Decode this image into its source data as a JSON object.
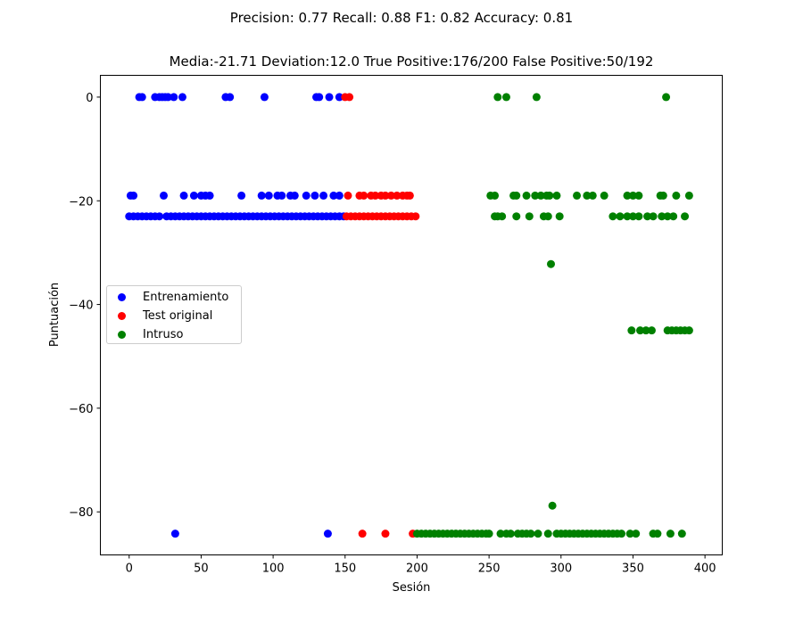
{
  "chart_data": {
    "type": "scatter",
    "suptitle": "Precision: 0.77 Recall: 0.88 F1: 0.82 Accuracy: 0.81",
    "title": "Media:-21.71 Deviation:12.0 True Positive:176/200 False Positive:50/192",
    "xlabel": "Sesión",
    "ylabel": "Puntuación",
    "xlim": [
      -20,
      412
    ],
    "ylim": [
      -88.3,
      4.2
    ],
    "xticks": [
      0,
      50,
      100,
      150,
      200,
      250,
      300,
      350,
      400
    ],
    "yticks": [
      0,
      -20,
      -40,
      -60,
      -80
    ],
    "ytick_labels": [
      "0",
      "−20",
      "−40",
      "−60",
      "−80"
    ],
    "grid": false,
    "legend_position": "center-left",
    "series": [
      {
        "name": "Entrenamiento",
        "color": "#0000ff",
        "points": [
          [
            7,
            0
          ],
          [
            9,
            0
          ],
          [
            18,
            0
          ],
          [
            21,
            0
          ],
          [
            23,
            0
          ],
          [
            25,
            0
          ],
          [
            27,
            0
          ],
          [
            31,
            0
          ],
          [
            37,
            0
          ],
          [
            67,
            0
          ],
          [
            70,
            0
          ],
          [
            94,
            0
          ],
          [
            130,
            0
          ],
          [
            132,
            0
          ],
          [
            139,
            0
          ],
          [
            146,
            0
          ],
          [
            1,
            -19
          ],
          [
            3,
            -19
          ],
          [
            24,
            -19
          ],
          [
            38,
            -19
          ],
          [
            45,
            -19
          ],
          [
            50,
            -19
          ],
          [
            53,
            -19
          ],
          [
            56,
            -19
          ],
          [
            78,
            -19
          ],
          [
            92,
            -19
          ],
          [
            97,
            -19
          ],
          [
            103,
            -19
          ],
          [
            106,
            -19
          ],
          [
            112,
            -19
          ],
          [
            115,
            -19
          ],
          [
            123,
            -19
          ],
          [
            129,
            -19
          ],
          [
            135,
            -19
          ],
          [
            142,
            -19
          ],
          [
            146,
            -19
          ],
          [
            0,
            -23
          ],
          [
            3,
            -23
          ],
          [
            6,
            -23
          ],
          [
            9,
            -23
          ],
          [
            12,
            -23
          ],
          [
            15,
            -23
          ],
          [
            18,
            -23
          ],
          [
            21,
            -23
          ],
          [
            26,
            -23
          ],
          [
            29,
            -23
          ],
          [
            32,
            -23
          ],
          [
            35,
            -23
          ],
          [
            38,
            -23
          ],
          [
            41,
            -23
          ],
          [
            44,
            -23
          ],
          [
            47,
            -23
          ],
          [
            50,
            -23
          ],
          [
            53,
            -23
          ],
          [
            56,
            -23
          ],
          [
            59,
            -23
          ],
          [
            62,
            -23
          ],
          [
            65,
            -23
          ],
          [
            68,
            -23
          ],
          [
            71,
            -23
          ],
          [
            74,
            -23
          ],
          [
            77,
            -23
          ],
          [
            80,
            -23
          ],
          [
            83,
            -23
          ],
          [
            86,
            -23
          ],
          [
            89,
            -23
          ],
          [
            92,
            -23
          ],
          [
            95,
            -23
          ],
          [
            98,
            -23
          ],
          [
            101,
            -23
          ],
          [
            104,
            -23
          ],
          [
            107,
            -23
          ],
          [
            110,
            -23
          ],
          [
            113,
            -23
          ],
          [
            116,
            -23
          ],
          [
            119,
            -23
          ],
          [
            122,
            -23
          ],
          [
            125,
            -23
          ],
          [
            128,
            -23
          ],
          [
            131,
            -23
          ],
          [
            134,
            -23
          ],
          [
            137,
            -23
          ],
          [
            140,
            -23
          ],
          [
            143,
            -23
          ],
          [
            146,
            -23
          ],
          [
            149,
            -23
          ],
          [
            32,
            -84.2
          ],
          [
            138,
            -84.2
          ]
        ]
      },
      {
        "name": "Test original",
        "color": "#ff0000",
        "points": [
          [
            150,
            0
          ],
          [
            153,
            0
          ],
          [
            152,
            -19
          ],
          [
            160,
            -19
          ],
          [
            163,
            -19
          ],
          [
            168,
            -19
          ],
          [
            171,
            -19
          ],
          [
            175,
            -19
          ],
          [
            178,
            -19
          ],
          [
            182,
            -19
          ],
          [
            186,
            -19
          ],
          [
            190,
            -19
          ],
          [
            193,
            -19
          ],
          [
            195,
            -19
          ],
          [
            151,
            -23
          ],
          [
            154,
            -23
          ],
          [
            157,
            -23
          ],
          [
            160,
            -23
          ],
          [
            163,
            -23
          ],
          [
            166,
            -23
          ],
          [
            169,
            -23
          ],
          [
            172,
            -23
          ],
          [
            175,
            -23
          ],
          [
            178,
            -23
          ],
          [
            181,
            -23
          ],
          [
            184,
            -23
          ],
          [
            187,
            -23
          ],
          [
            190,
            -23
          ],
          [
            193,
            -23
          ],
          [
            196,
            -23
          ],
          [
            199,
            -23
          ],
          [
            162,
            -84.2
          ],
          [
            178,
            -84.2
          ],
          [
            197,
            -84.2
          ]
        ]
      },
      {
        "name": "Intruso",
        "color": "#008000",
        "points": [
          [
            256,
            0
          ],
          [
            262,
            0
          ],
          [
            283,
            0
          ],
          [
            373,
            0
          ],
          [
            251,
            -19
          ],
          [
            254,
            -19
          ],
          [
            267,
            -19
          ],
          [
            269,
            -19
          ],
          [
            276,
            -19
          ],
          [
            282,
            -19
          ],
          [
            286,
            -19
          ],
          [
            290,
            -19
          ],
          [
            292,
            -19
          ],
          [
            297,
            -19
          ],
          [
            311,
            -19
          ],
          [
            318,
            -19
          ],
          [
            322,
            -19
          ],
          [
            330,
            -19
          ],
          [
            346,
            -19
          ],
          [
            350,
            -19
          ],
          [
            354,
            -19
          ],
          [
            369,
            -19
          ],
          [
            371,
            -19
          ],
          [
            380,
            -19
          ],
          [
            389,
            -19
          ],
          [
            254,
            -23
          ],
          [
            256,
            -23
          ],
          [
            259,
            -23
          ],
          [
            269,
            -23
          ],
          [
            278,
            -23
          ],
          [
            288,
            -23
          ],
          [
            291,
            -23
          ],
          [
            299,
            -23
          ],
          [
            336,
            -23
          ],
          [
            341,
            -23
          ],
          [
            346,
            -23
          ],
          [
            350,
            -23
          ],
          [
            354,
            -23
          ],
          [
            360,
            -23
          ],
          [
            364,
            -23
          ],
          [
            370,
            -23
          ],
          [
            374,
            -23
          ],
          [
            378,
            -23
          ],
          [
            386,
            -23
          ],
          [
            293,
            -32.2
          ],
          [
            349,
            -45
          ],
          [
            355,
            -45
          ],
          [
            359,
            -45
          ],
          [
            363,
            -45
          ],
          [
            374,
            -45
          ],
          [
            377,
            -45
          ],
          [
            380,
            -45
          ],
          [
            383,
            -45
          ],
          [
            386,
            -45
          ],
          [
            389,
            -45
          ],
          [
            294,
            -78.8
          ],
          [
            200,
            -84.2
          ],
          [
            203,
            -84.2
          ],
          [
            206,
            -84.2
          ],
          [
            209,
            -84.2
          ],
          [
            212,
            -84.2
          ],
          [
            215,
            -84.2
          ],
          [
            218,
            -84.2
          ],
          [
            221,
            -84.2
          ],
          [
            224,
            -84.2
          ],
          [
            227,
            -84.2
          ],
          [
            230,
            -84.2
          ],
          [
            233,
            -84.2
          ],
          [
            236,
            -84.2
          ],
          [
            239,
            -84.2
          ],
          [
            242,
            -84.2
          ],
          [
            245,
            -84.2
          ],
          [
            248,
            -84.2
          ],
          [
            250,
            -84.2
          ],
          [
            258,
            -84.2
          ],
          [
            262,
            -84.2
          ],
          [
            265,
            -84.2
          ],
          [
            270,
            -84.2
          ],
          [
            273,
            -84.2
          ],
          [
            276,
            -84.2
          ],
          [
            279,
            -84.2
          ],
          [
            284,
            -84.2
          ],
          [
            291,
            -84.2
          ],
          [
            297,
            -84.2
          ],
          [
            300,
            -84.2
          ],
          [
            303,
            -84.2
          ],
          [
            306,
            -84.2
          ],
          [
            309,
            -84.2
          ],
          [
            312,
            -84.2
          ],
          [
            315,
            -84.2
          ],
          [
            318,
            -84.2
          ],
          [
            321,
            -84.2
          ],
          [
            324,
            -84.2
          ],
          [
            327,
            -84.2
          ],
          [
            330,
            -84.2
          ],
          [
            333,
            -84.2
          ],
          [
            336,
            -84.2
          ],
          [
            339,
            -84.2
          ],
          [
            342,
            -84.2
          ],
          [
            348,
            -84.2
          ],
          [
            352,
            -84.2
          ],
          [
            364,
            -84.2
          ],
          [
            367,
            -84.2
          ],
          [
            376,
            -84.2
          ],
          [
            384,
            -84.2
          ]
        ]
      }
    ]
  }
}
